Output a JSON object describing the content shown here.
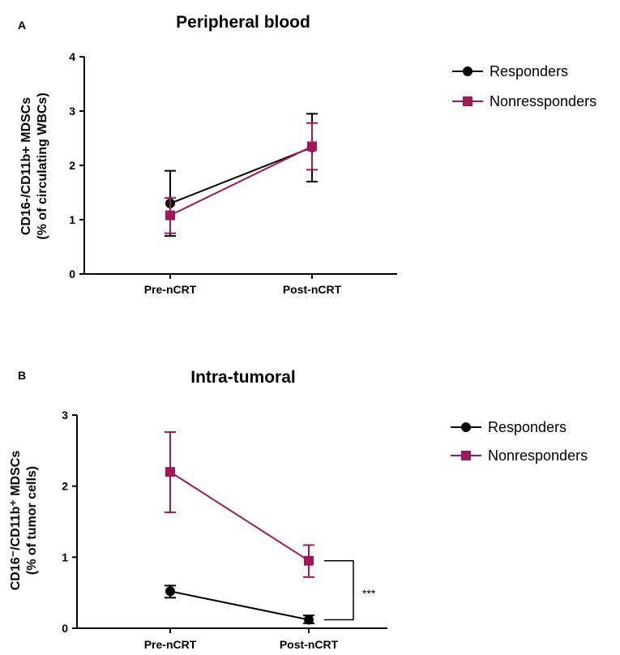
{
  "chart_data": [
    {
      "panel": "A",
      "type": "line",
      "title": "Peripheral blood",
      "ylabel_line1": "CD16-/CD11b+ MDSCs",
      "ylabel_line2": "(% of circulating WBCs)",
      "categories": [
        "Pre-nCRT",
        "Post-nCRT"
      ],
      "ylim": [
        0,
        4
      ],
      "yticks": [
        "0",
        "1",
        "2",
        "3",
        "4"
      ],
      "legend_position": "right",
      "series": [
        {
          "name": "Responders",
          "marker": "circle",
          "color": "#000000",
          "values": [
            1.3,
            2.33
          ],
          "err_low": [
            0.7,
            1.7
          ],
          "err_high": [
            1.9,
            2.95
          ]
        },
        {
          "name": "Nonressponders",
          "marker": "square",
          "color": "#a3175a",
          "values": [
            1.08,
            2.35
          ],
          "err_low": [
            0.75,
            1.92
          ],
          "err_high": [
            1.4,
            2.78
          ]
        }
      ]
    },
    {
      "panel": "B",
      "type": "line",
      "title": "Intra-tumoral",
      "ylabel_line1": "CD16⁻/CD11b⁺ MDSCs",
      "ylabel_line2": "(% of tumor cells)",
      "categories": [
        "Pre-nCRT",
        "Post-nCRT"
      ],
      "ylim": [
        0,
        3
      ],
      "yticks": [
        "0",
        "1",
        "2",
        "3"
      ],
      "legend_position": "right",
      "annotation": "***",
      "series": [
        {
          "name": "Responders",
          "marker": "circle",
          "color": "#000000",
          "values": [
            0.52,
            0.12
          ],
          "err_low": [
            0.43,
            0.07
          ],
          "err_high": [
            0.6,
            0.18
          ]
        },
        {
          "name": "Nonresponders",
          "marker": "square",
          "color": "#a3175a",
          "values": [
            2.2,
            0.95
          ],
          "err_low": [
            1.63,
            0.72
          ],
          "err_high": [
            2.76,
            1.17
          ]
        }
      ]
    }
  ]
}
